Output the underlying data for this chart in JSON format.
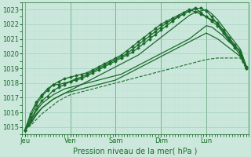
{
  "bg_color": "#cce8dc",
  "grid_color_major": "#99ccbb",
  "grid_color_minor": "#b8ddd0",
  "line_color": "#1a6b2a",
  "xlabel": "Pression niveau de la mer( hPa )",
  "days": [
    "Jeu",
    "Ven",
    "Sam",
    "Dim",
    "Lun"
  ],
  "day_positions": [
    0,
    8,
    16,
    24,
    32
  ],
  "xlim": [
    -0.5,
    39.5
  ],
  "ylim": [
    1014.5,
    1023.5
  ],
  "yticks": [
    1015,
    1016,
    1017,
    1018,
    1019,
    1020,
    1021,
    1022,
    1023
  ],
  "num_points": 40,
  "series": [
    {
      "values": [
        1014.8,
        1015.3,
        1015.9,
        1016.3,
        1016.6,
        1016.9,
        1017.1,
        1017.3,
        1017.5,
        1017.7,
        1017.9,
        1018.1,
        1018.3,
        1018.5,
        1018.7,
        1018.9,
        1019.1,
        1019.3,
        1019.5,
        1019.7,
        1019.9,
        1020.2,
        1020.5,
        1020.8,
        1021.1,
        1021.4,
        1021.7,
        1022.0,
        1022.3,
        1022.6,
        1022.8,
        1022.9,
        1023.0,
        1022.7,
        1022.3,
        1021.8,
        1021.3,
        1020.8,
        1020.3,
        1019.2
      ],
      "style": "solid",
      "marker": false,
      "lw": 0.9
    },
    {
      "values": [
        1014.8,
        1015.5,
        1016.2,
        1016.8,
        1017.1,
        1017.5,
        1017.7,
        1017.9,
        1018.1,
        1018.3,
        1018.4,
        1018.6,
        1018.8,
        1019.0,
        1019.2,
        1019.4,
        1019.6,
        1019.8,
        1020.0,
        1020.3,
        1020.6,
        1020.9,
        1021.2,
        1021.5,
        1021.8,
        1022.1,
        1022.3,
        1022.5,
        1022.7,
        1022.9,
        1023.05,
        1023.1,
        1022.9,
        1022.5,
        1022.0,
        1021.5,
        1021.0,
        1020.5,
        1020.1,
        1019.0
      ],
      "style": "solid",
      "marker": true,
      "lw": 0.9
    },
    {
      "values": [
        1014.8,
        1015.9,
        1016.7,
        1017.2,
        1017.6,
        1017.9,
        1017.9,
        1018.0,
        1018.1,
        1018.2,
        1018.3,
        1018.5,
        1018.7,
        1018.9,
        1019.1,
        1019.3,
        1019.5,
        1019.7,
        1019.9,
        1020.1,
        1020.4,
        1020.7,
        1021.0,
        1021.3,
        1021.6,
        1021.9,
        1022.2,
        1022.5,
        1022.7,
        1022.9,
        1023.1,
        1022.8,
        1022.5,
        1022.2,
        1021.9,
        1021.4,
        1020.9,
        1020.4,
        1019.9,
        1019.1
      ],
      "style": "solid",
      "marker": true,
      "lw": 0.9
    },
    {
      "values": [
        1014.8,
        1015.1,
        1015.5,
        1015.9,
        1016.2,
        1016.5,
        1016.8,
        1017.0,
        1017.2,
        1017.3,
        1017.4,
        1017.5,
        1017.6,
        1017.7,
        1017.8,
        1017.9,
        1018.0,
        1018.1,
        1018.2,
        1018.3,
        1018.4,
        1018.5,
        1018.6,
        1018.7,
        1018.8,
        1018.9,
        1019.0,
        1019.1,
        1019.2,
        1019.3,
        1019.4,
        1019.5,
        1019.6,
        1019.65,
        1019.7,
        1019.7,
        1019.7,
        1019.7,
        1019.7,
        1019.0
      ],
      "style": "dashed",
      "marker": false,
      "lw": 0.8
    },
    {
      "values": [
        1014.8,
        1015.2,
        1015.8,
        1016.3,
        1016.6,
        1016.9,
        1017.1,
        1017.3,
        1017.4,
        1017.5,
        1017.6,
        1017.7,
        1017.8,
        1017.9,
        1018.0,
        1018.1,
        1018.2,
        1018.4,
        1018.6,
        1018.8,
        1019.0,
        1019.2,
        1019.4,
        1019.6,
        1019.8,
        1020.0,
        1020.2,
        1020.4,
        1020.6,
        1020.8,
        1021.0,
        1021.2,
        1021.4,
        1021.2,
        1021.0,
        1020.7,
        1020.4,
        1020.1,
        1019.8,
        1019.1
      ],
      "style": "solid",
      "marker": false,
      "lw": 0.9
    },
    {
      "values": [
        1014.8,
        1015.7,
        1016.5,
        1017.1,
        1017.5,
        1017.9,
        1018.1,
        1018.3,
        1018.4,
        1018.5,
        1018.6,
        1018.7,
        1018.9,
        1019.1,
        1019.3,
        1019.5,
        1019.7,
        1019.9,
        1020.2,
        1020.5,
        1020.8,
        1021.1,
        1021.4,
        1021.7,
        1022.0,
        1022.2,
        1022.4,
        1022.6,
        1022.8,
        1023.0,
        1022.85,
        1022.7,
        1022.5,
        1022.3,
        1022.1,
        1021.6,
        1021.1,
        1020.6,
        1020.1,
        1019.0
      ],
      "style": "solid",
      "marker": true,
      "lw": 0.9
    },
    {
      "values": [
        1014.8,
        1015.4,
        1016.1,
        1016.6,
        1016.9,
        1017.2,
        1017.4,
        1017.6,
        1017.7,
        1017.8,
        1017.9,
        1018.0,
        1018.1,
        1018.2,
        1018.3,
        1018.4,
        1018.5,
        1018.6,
        1018.8,
        1019.0,
        1019.2,
        1019.4,
        1019.6,
        1019.8,
        1020.0,
        1020.2,
        1020.4,
        1020.6,
        1020.8,
        1021.0,
        1021.3,
        1021.6,
        1021.9,
        1021.8,
        1021.5,
        1021.2,
        1020.8,
        1020.5,
        1020.2,
        1019.2
      ],
      "style": "solid",
      "marker": false,
      "lw": 0.9
    }
  ],
  "xlabel_fontsize": 7,
  "tick_fontsize": 6
}
